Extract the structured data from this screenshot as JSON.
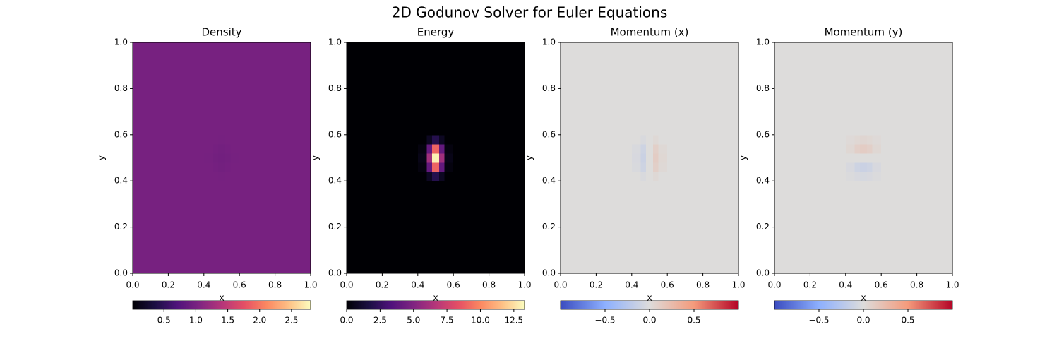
{
  "title": "2D Godunov Solver for Euler Equations",
  "chart_data": [
    {
      "type": "heatmap",
      "title": "Density",
      "xlabel": "x",
      "ylabel": "y",
      "cmap": "magma",
      "xlim": [
        0,
        1
      ],
      "ylim": [
        0,
        1
      ],
      "xticks": [
        {
          "value": 0,
          "label": "0.0"
        },
        0.2,
        0.4,
        0.6,
        0.8,
        {
          "value": 1,
          "label": "1.0"
        }
      ],
      "yticks": [
        {
          "value": 0,
          "label": "0.0"
        },
        0.2,
        0.4,
        0.6,
        0.8,
        {
          "value": 1,
          "label": "1.0"
        }
      ],
      "xedges": [
        0,
        0.4,
        0.45,
        0.48,
        0.52,
        0.55,
        0.6,
        1
      ],
      "yedges": [
        0,
        0.4,
        0.44,
        0.48,
        0.52,
        0.56,
        0.6,
        1
      ],
      "z": [
        [
          1,
          1,
          1,
          1,
          1,
          1,
          1
        ],
        [
          1,
          1,
          1,
          0.99,
          1,
          1,
          1
        ],
        [
          1,
          1,
          0.98,
          0.97,
          0.98,
          1,
          1
        ],
        [
          1,
          0.99,
          0.97,
          0.96,
          0.97,
          0.99,
          1
        ],
        [
          1,
          1,
          0.98,
          0.97,
          0.98,
          1,
          1
        ],
        [
          1,
          1,
          1,
          0.99,
          1,
          1,
          1
        ],
        [
          1,
          1,
          1,
          1,
          1,
          1,
          1
        ]
      ],
      "clim": [
        0.01,
        2.8
      ],
      "cticks": [
        0.5,
        {
          "value": 1,
          "label": "1.0"
        },
        1.5,
        {
          "value": 2,
          "label": "2.0"
        },
        2.5
      ]
    },
    {
      "type": "heatmap",
      "title": "Energy",
      "xlabel": "x",
      "ylabel": "y",
      "cmap": "magma",
      "xlim": [
        0,
        1
      ],
      "ylim": [
        0,
        1
      ],
      "xticks": [
        {
          "value": 0,
          "label": "0.0"
        },
        0.2,
        0.4,
        0.6,
        0.8,
        {
          "value": 1,
          "label": "1.0"
        }
      ],
      "yticks": [
        {
          "value": 0,
          "label": "0.0"
        },
        0.2,
        0.4,
        0.6,
        0.8,
        {
          "value": 1,
          "label": "1.0"
        }
      ],
      "xedges": [
        0,
        0.4,
        0.45,
        0.48,
        0.52,
        0.55,
        0.6,
        1
      ],
      "yedges": [
        0,
        0.4,
        0.44,
        0.48,
        0.52,
        0.56,
        0.6,
        1
      ],
      "z": [
        [
          0,
          0,
          0,
          0,
          0,
          0,
          0
        ],
        [
          0,
          0,
          0.8,
          2,
          0.8,
          0,
          0
        ],
        [
          0,
          0.3,
          4,
          9,
          4,
          0.3,
          0
        ],
        [
          0,
          0.5,
          6,
          13,
          6,
          0.5,
          0
        ],
        [
          0,
          0.3,
          4,
          9,
          4,
          0.3,
          0
        ],
        [
          0,
          0,
          0.8,
          2,
          0.8,
          0,
          0
        ],
        [
          0,
          0,
          0,
          0,
          0,
          0,
          0
        ]
      ],
      "clim": [
        0,
        13.3
      ],
      "cticks": [
        {
          "value": 0,
          "label": "0.0"
        },
        2.5,
        {
          "value": 5,
          "label": "5.0"
        },
        7.5,
        {
          "value": 10,
          "label": "10.0"
        },
        12.5
      ]
    },
    {
      "type": "heatmap",
      "title": "Momentum (x)",
      "xlabel": "x",
      "ylabel": "y",
      "cmap": "coolwarm",
      "xlim": [
        0,
        1
      ],
      "ylim": [
        0,
        1
      ],
      "xticks": [
        {
          "value": 0,
          "label": "0.0"
        },
        0.2,
        0.4,
        0.6,
        0.8,
        {
          "value": 1,
          "label": "1.0"
        }
      ],
      "yticks": [
        {
          "value": 0,
          "label": "0.0"
        },
        0.2,
        0.4,
        0.6,
        0.8,
        {
          "value": 1,
          "label": "1.0"
        }
      ],
      "xedges": [
        0,
        0.4,
        0.45,
        0.48,
        0.52,
        0.55,
        0.6,
        1
      ],
      "yedges": [
        0,
        0.4,
        0.44,
        0.48,
        0.52,
        0.56,
        0.6,
        1
      ],
      "z": [
        [
          0,
          0,
          0,
          0,
          0,
          0,
          0
        ],
        [
          0,
          0,
          -0.03,
          0,
          0.03,
          0,
          0
        ],
        [
          0,
          -0.03,
          -0.1,
          0,
          0.1,
          0.03,
          0
        ],
        [
          0,
          -0.04,
          -0.12,
          0,
          0.12,
          0.04,
          0
        ],
        [
          0,
          -0.03,
          -0.1,
          0,
          0.1,
          0.03,
          0
        ],
        [
          0,
          0,
          -0.03,
          0,
          0.03,
          0,
          0
        ],
        [
          0,
          0,
          0,
          0,
          0,
          0,
          0
        ]
      ],
      "clim": [
        -1,
        1
      ],
      "cticks": [
        {
          "value": -0.5,
          "label": "−0.5"
        },
        {
          "value": 0,
          "label": "0.0"
        },
        0.5
      ]
    },
    {
      "type": "heatmap",
      "title": "Momentum (y)",
      "xlabel": "x",
      "ylabel": "y",
      "cmap": "coolwarm",
      "xlim": [
        0,
        1
      ],
      "ylim": [
        0,
        1
      ],
      "xticks": [
        {
          "value": 0,
          "label": "0.0"
        },
        0.2,
        0.4,
        0.6,
        0.8,
        {
          "value": 1,
          "label": "1.0"
        }
      ],
      "yticks": [
        {
          "value": 0,
          "label": "0.0"
        },
        0.2,
        0.4,
        0.6,
        0.8,
        {
          "value": 1,
          "label": "1.0"
        }
      ],
      "xedges": [
        0,
        0.4,
        0.45,
        0.48,
        0.52,
        0.55,
        0.6,
        1
      ],
      "yedges": [
        0,
        0.4,
        0.44,
        0.48,
        0.52,
        0.56,
        0.6,
        1
      ],
      "z": [
        [
          0,
          0,
          0,
          0,
          0,
          0,
          0
        ],
        [
          0,
          -0.02,
          -0.04,
          -0.05,
          -0.04,
          -0.02,
          0
        ],
        [
          0,
          -0.04,
          -0.1,
          -0.12,
          -0.1,
          -0.04,
          0
        ],
        [
          0,
          0,
          0,
          0,
          0,
          0,
          0
        ],
        [
          0,
          0.04,
          0.1,
          0.12,
          0.1,
          0.04,
          0
        ],
        [
          0,
          0.02,
          0.04,
          0.05,
          0.04,
          0.02,
          0
        ],
        [
          0,
          0,
          0,
          0,
          0,
          0,
          0
        ]
      ],
      "clim": [
        -1,
        1
      ],
      "cticks": [
        {
          "value": -0.5,
          "label": "−0.5"
        },
        {
          "value": 0,
          "label": "0.0"
        },
        0.5
      ]
    }
  ]
}
